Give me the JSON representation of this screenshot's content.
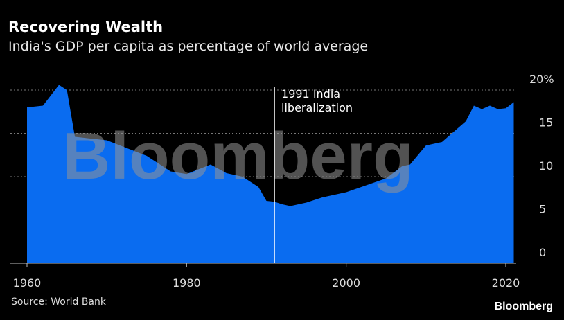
{
  "header": {
    "title": "Recovering Wealth",
    "subtitle": "India's GDP per capita as percentage of world average"
  },
  "footer": {
    "source": "Source: World Bank",
    "logo": "Bloomberg"
  },
  "watermark": "Bloomberg",
  "colors": {
    "area": "#0a6cf0",
    "background": "#000000",
    "grid": "#777777"
  },
  "chart_data": {
    "type": "area",
    "title": "Recovering Wealth",
    "subtitle": "India's GDP per capita as percentage of world average",
    "x": [
      1960,
      1962,
      1964,
      1965,
      1966,
      1967,
      1970,
      1975,
      1978,
      1980,
      1983,
      1985,
      1987,
      1989,
      1990,
      1991,
      1992,
      1993,
      1995,
      1997,
      2000,
      2005,
      2007,
      2008,
      2010,
      2012,
      2015,
      2016,
      2017,
      2018,
      2019,
      2020,
      2021
    ],
    "values": [
      18.0,
      18.2,
      20.6,
      20.0,
      14.6,
      14.5,
      14.2,
      12.4,
      10.6,
      10.3,
      11.4,
      10.4,
      10.0,
      8.8,
      7.2,
      7.1,
      6.8,
      6.6,
      7.0,
      7.6,
      8.2,
      9.8,
      11.2,
      11.4,
      13.6,
      14.0,
      16.4,
      18.2,
      17.8,
      18.2,
      17.8,
      17.9,
      18.6
    ],
    "xlim": [
      1960,
      2021
    ],
    "ylim": [
      0,
      20
    ],
    "x_ticks": [
      "1960",
      "1980",
      "2000",
      "2020"
    ],
    "y_ticks": [
      "0",
      "5",
      "10",
      "15",
      "20%"
    ],
    "grid": true,
    "annotation": {
      "x": 1991,
      "lines": [
        "1991 India",
        "liberalization"
      ]
    }
  }
}
